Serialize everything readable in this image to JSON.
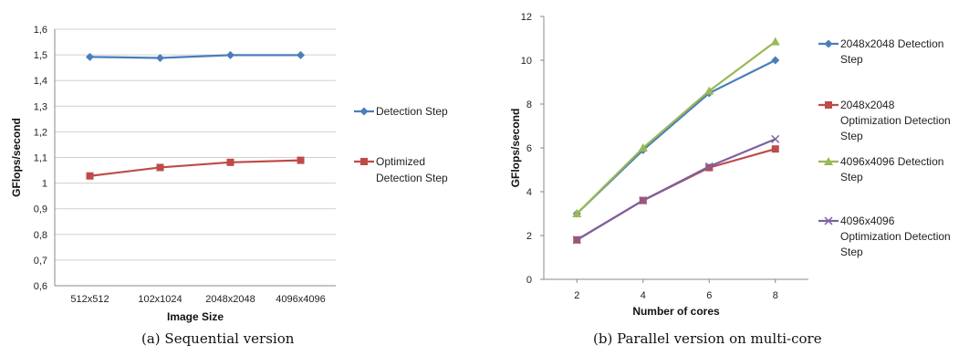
{
  "chart_data": [
    {
      "type": "line",
      "caption": "(a) Sequential version",
      "xlabel": "Image Size",
      "ylabel": "GFlops/second",
      "categories": [
        "512x512",
        "102x1024",
        "2048x2048",
        "4096x4096"
      ],
      "ylim": [
        0.6,
        1.6
      ],
      "yticks": [
        "0,6",
        "0,7",
        "0,8",
        "0,9",
        "1",
        "1,1",
        "1,2",
        "1,3",
        "1,4",
        "1,5",
        "1,6"
      ],
      "grid": true,
      "legend_position": "right",
      "series": [
        {
          "name": "Detection Step",
          "legend_lines": [
            "Detection Step"
          ],
          "values": [
            1.492,
            1.488,
            1.499,
            1.499
          ],
          "color": "#4a7ebb",
          "marker": "diamond"
        },
        {
          "name": "Optimized Detection Step",
          "legend_lines": [
            "Optimized",
            "Detection Step"
          ],
          "values": [
            1.028,
            1.061,
            1.081,
            1.089
          ],
          "color": "#be4b48",
          "marker": "square"
        }
      ]
    },
    {
      "type": "line",
      "caption": "(b) Parallel version on multi-core",
      "xlabel": "Number of cores",
      "ylabel": "GFlops/second",
      "x": [
        2,
        4,
        6,
        8
      ],
      "xticks": [
        "2",
        "4",
        "6",
        "8"
      ],
      "ylim": [
        0,
        12
      ],
      "yticks": [
        "0",
        "2",
        "4",
        "6",
        "8",
        "10",
        "12"
      ],
      "grid": false,
      "legend_position": "right",
      "series": [
        {
          "name": "2048x2048 Detection Step",
          "legend_lines": [
            "2048x2048 Detection",
            "Step"
          ],
          "values": [
            3.0,
            5.9,
            8.5,
            10.0
          ],
          "color": "#4a7ebb",
          "marker": "diamond"
        },
        {
          "name": "2048x2048 Optimization Detection Step",
          "legend_lines": [
            "2048x2048",
            "Optimization Detection",
            "Step"
          ],
          "values": [
            1.8,
            3.6,
            5.1,
            5.95
          ],
          "color": "#be4b48",
          "marker": "square"
        },
        {
          "name": "4096x4096 Detection Step",
          "legend_lines": [
            "4096x4096 Detection",
            "Step"
          ],
          "values": [
            3.0,
            6.0,
            8.6,
            10.85
          ],
          "color": "#98b954",
          "marker": "triangle"
        },
        {
          "name": "4096x4096 Optimization Detection Step",
          "legend_lines": [
            "4096x4096",
            "Optimization Detection",
            "Step"
          ],
          "values": [
            1.8,
            3.6,
            5.15,
            6.4
          ],
          "color": "#7d60a0",
          "marker": "x"
        }
      ]
    }
  ]
}
